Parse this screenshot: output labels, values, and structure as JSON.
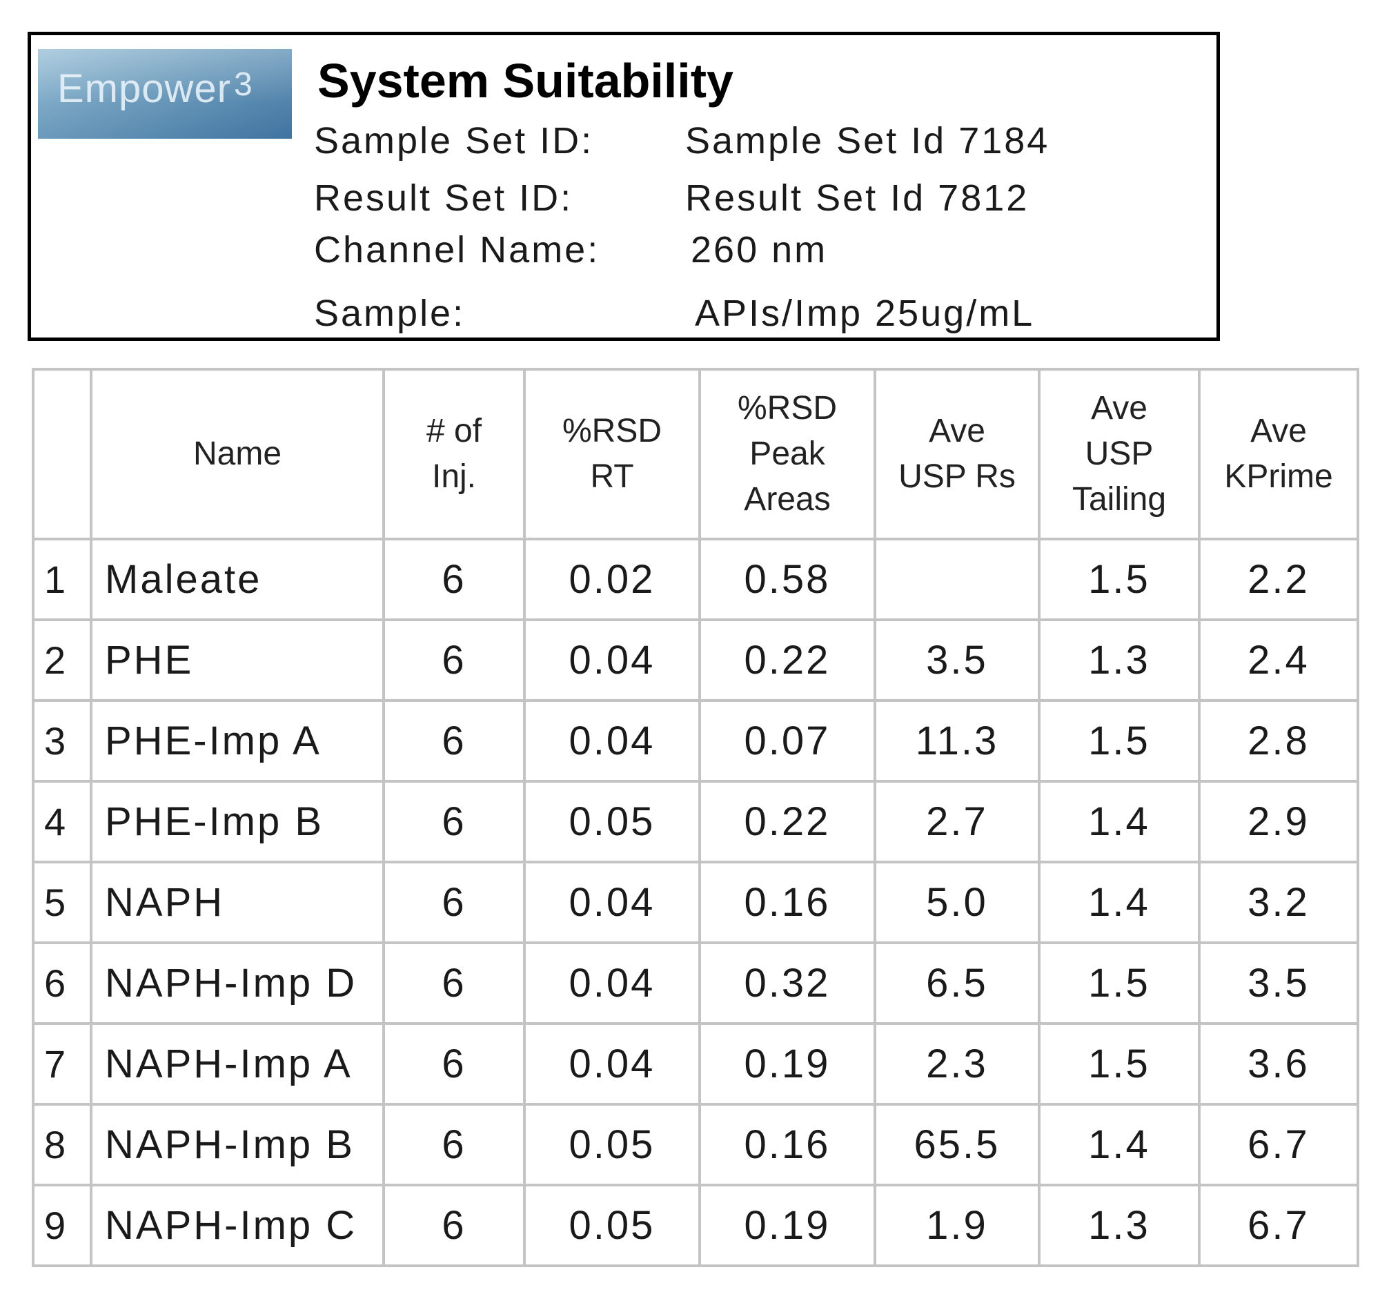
{
  "header": {
    "logo_text": "Empower",
    "logo_sup": "3",
    "title": "System Suitability",
    "fields": [
      {
        "label": "Sample Set ID:",
        "value": "Sample Set Id 7184"
      },
      {
        "label": "Result Set ID:",
        "value": "Result Set Id 7812"
      },
      {
        "label": "Channel Name:",
        "value": "260 nm"
      },
      {
        "label": "Sample:",
        "value": "APIs/Imp 25ug/mL"
      }
    ]
  },
  "table": {
    "columns": [
      {
        "key": "idx",
        "lines": []
      },
      {
        "key": "name",
        "lines": [
          "Name"
        ]
      },
      {
        "key": "inj",
        "lines": [
          "# of",
          "Inj."
        ]
      },
      {
        "key": "rsd_rt",
        "lines": [
          "%RSD",
          "RT"
        ]
      },
      {
        "key": "rsd_area",
        "lines": [
          "%RSD",
          "Peak",
          "Areas"
        ]
      },
      {
        "key": "rs",
        "lines": [
          "Ave",
          "USP Rs"
        ]
      },
      {
        "key": "tailing",
        "lines": [
          "Ave",
          "USP",
          "Tailing"
        ]
      },
      {
        "key": "kprime",
        "lines": [
          "Ave",
          "KPrime"
        ]
      }
    ],
    "rows": [
      {
        "idx": "1",
        "name": "Maleate",
        "inj": "6",
        "rsd_rt": "0.02",
        "rsd_area": "0.58",
        "rs": "",
        "tailing": "1.5",
        "kprime": "2.2"
      },
      {
        "idx": "2",
        "name": "PHE",
        "inj": "6",
        "rsd_rt": "0.04",
        "rsd_area": "0.22",
        "rs": "3.5",
        "tailing": "1.3",
        "kprime": "2.4"
      },
      {
        "idx": "3",
        "name": "PHE-Imp A",
        "inj": "6",
        "rsd_rt": "0.04",
        "rsd_area": "0.07",
        "rs": "11.3",
        "tailing": "1.5",
        "kprime": "2.8"
      },
      {
        "idx": "4",
        "name": "PHE-Imp B",
        "inj": "6",
        "rsd_rt": "0.05",
        "rsd_area": "0.22",
        "rs": "2.7",
        "tailing": "1.4",
        "kprime": "2.9"
      },
      {
        "idx": "5",
        "name": "NAPH",
        "inj": "6",
        "rsd_rt": "0.04",
        "rsd_area": "0.16",
        "rs": "5.0",
        "tailing": "1.4",
        "kprime": "3.2"
      },
      {
        "idx": "6",
        "name": "NAPH-Imp D",
        "inj": "6",
        "rsd_rt": "0.04",
        "rsd_area": "0.32",
        "rs": "6.5",
        "tailing": "1.5",
        "kprime": "3.5"
      },
      {
        "idx": "7",
        "name": "NAPH-Imp A",
        "inj": "6",
        "rsd_rt": "0.04",
        "rsd_area": "0.19",
        "rs": "2.3",
        "tailing": "1.5",
        "kprime": "3.6"
      },
      {
        "idx": "8",
        "name": "NAPH-Imp B",
        "inj": "6",
        "rsd_rt": "0.05",
        "rsd_area": "0.16",
        "rs": "65.5",
        "tailing": "1.4",
        "kprime": "6.7"
      },
      {
        "idx": "9",
        "name": "NAPH-Imp C",
        "inj": "6",
        "rsd_rt": "0.05",
        "rsd_area": "0.19",
        "rs": "1.9",
        "tailing": "1.3",
        "kprime": "6.7"
      }
    ]
  }
}
